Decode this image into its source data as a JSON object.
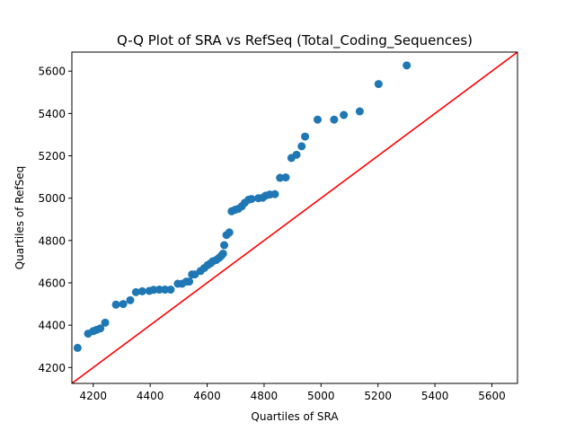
{
  "chart_data": {
    "type": "scatter",
    "title": "Q-Q Plot of SRA vs RefSeq (Total_Coding_Sequences)",
    "xlabel": "Quartiles of SRA",
    "ylabel": "Quartiles of RefSeq",
    "xlim": [
      4125,
      5690
    ],
    "ylim": [
      4125,
      5690
    ],
    "xticks": [
      4200,
      4400,
      4600,
      4800,
      5000,
      5200,
      5400,
      5600
    ],
    "yticks": [
      4200,
      4400,
      4600,
      4800,
      5000,
      5200,
      5400,
      5600
    ],
    "grid": false,
    "point_color": "#1f77b4",
    "reference_line": {
      "x": [
        4125,
        5690
      ],
      "y": [
        4125,
        5690
      ],
      "color": "#ff0000"
    },
    "points": [
      [
        4145,
        4293
      ],
      [
        4182,
        4360
      ],
      [
        4200,
        4372
      ],
      [
        4212,
        4378
      ],
      [
        4225,
        4385
      ],
      [
        4242,
        4412
      ],
      [
        4280,
        4497
      ],
      [
        4305,
        4500
      ],
      [
        4330,
        4518
      ],
      [
        4350,
        4556
      ],
      [
        4372,
        4560
      ],
      [
        4397,
        4562
      ],
      [
        4412,
        4567
      ],
      [
        4432,
        4568
      ],
      [
        4452,
        4568
      ],
      [
        4472,
        4568
      ],
      [
        4497,
        4596
      ],
      [
        4512,
        4596
      ],
      [
        4527,
        4606
      ],
      [
        4537,
        4606
      ],
      [
        4547,
        4640
      ],
      [
        4557,
        4640
      ],
      [
        4577,
        4656
      ],
      [
        4590,
        4670
      ],
      [
        4602,
        4684
      ],
      [
        4612,
        4692
      ],
      [
        4620,
        4702
      ],
      [
        4632,
        4708
      ],
      [
        4642,
        4718
      ],
      [
        4650,
        4728
      ],
      [
        4656,
        4738
      ],
      [
        4660,
        4778
      ],
      [
        4668,
        4826
      ],
      [
        4678,
        4838
      ],
      [
        4686,
        4938
      ],
      [
        4698,
        4945
      ],
      [
        4710,
        4950
      ],
      [
        4722,
        4962
      ],
      [
        4732,
        4978
      ],
      [
        4746,
        4993
      ],
      [
        4756,
        4996
      ],
      [
        4780,
        5000
      ],
      [
        4795,
        5002
      ],
      [
        4806,
        5012
      ],
      [
        4820,
        5017
      ],
      [
        4838,
        5019
      ],
      [
        4856,
        5096
      ],
      [
        4876,
        5098
      ],
      [
        4896,
        5190
      ],
      [
        4914,
        5205
      ],
      [
        4932,
        5245
      ],
      [
        4944,
        5291
      ],
      [
        4988,
        5371
      ],
      [
        5046,
        5371
      ],
      [
        5080,
        5393
      ],
      [
        5136,
        5410
      ],
      [
        5202,
        5539
      ],
      [
        5301,
        5627
      ]
    ]
  }
}
